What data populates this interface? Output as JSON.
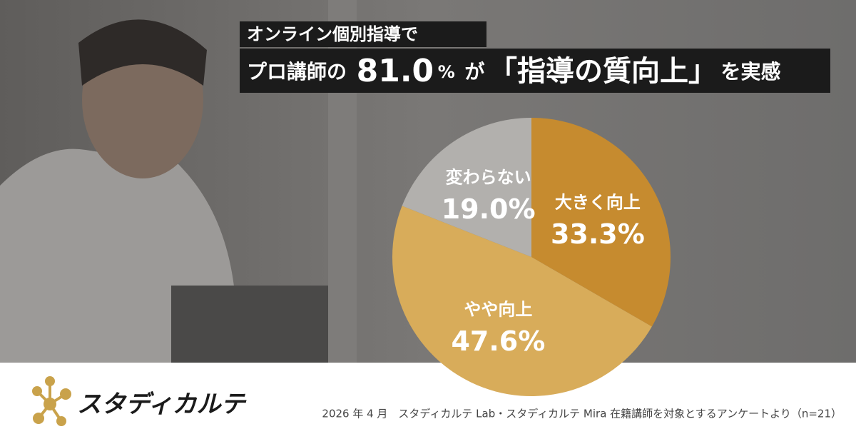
{
  "chart_data": {
    "type": "pie",
    "title_line1": "オンライン個別指導で",
    "title_line2": [
      "プロ講師の",
      "81.0",
      "%",
      "が",
      "「指導の質向上」",
      "を実感"
    ],
    "categories": [
      "大きく向上",
      "やや向上",
      "変わらない"
    ],
    "values": [
      33.3,
      47.6,
      19.0
    ],
    "value_labels": [
      "33.3%",
      "47.6%",
      "19.0%"
    ],
    "colors": [
      "#c68b2f",
      "#d8ac5a",
      "#b2b0ad"
    ]
  },
  "logo": "スタディカルテ",
  "footnote": "2026 年 4 月　スタディカルテ Lab・スタディカルテ Mira 在籍講師を対象とするアンケートより（n=21）"
}
